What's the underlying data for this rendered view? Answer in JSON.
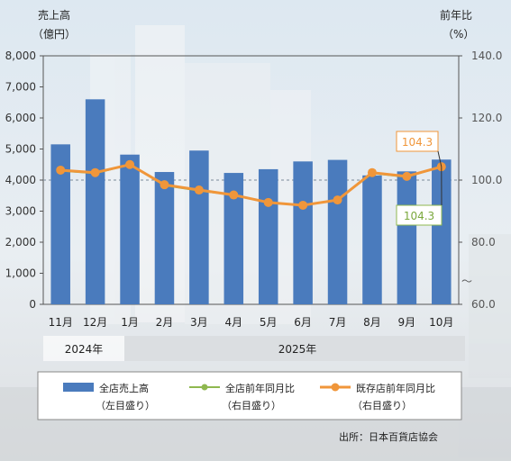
{
  "chart_data": {
    "type": "bar",
    "categories": [
      "11月",
      "12月",
      "1月",
      "2月",
      "3月",
      "4月",
      "5月",
      "6月",
      "7月",
      "8月",
      "9月",
      "10月"
    ],
    "year_groups": [
      {
        "label": "2024年",
        "categories": [
          "11月",
          "12月"
        ]
      },
      {
        "label": "2025年",
        "categories": [
          "1月",
          "2月",
          "3月",
          "4月",
          "5月",
          "6月",
          "7月",
          "8月",
          "9月",
          "10月"
        ]
      }
    ],
    "y_left": {
      "title_line1": "売上高",
      "title_line2": "（億円）",
      "ylim": [
        0,
        8000
      ],
      "ticks": [
        "0",
        "1,000",
        "2,000",
        "3,000",
        "4,000",
        "5,000",
        "6,000",
        "7,000",
        "8,000"
      ]
    },
    "y_right": {
      "title_line1": "前年比",
      "title_line2": "（%）",
      "ylim": [
        60,
        140
      ],
      "ticks": [
        "60.0",
        "80.0",
        "100.0",
        "120.0",
        "140.0"
      ],
      "break_mark": "〜"
    },
    "series": [
      {
        "name": "全店売上高",
        "sub": "（左目盛り）",
        "axis": "left",
        "kind": "bar",
        "color": "#4a7bbd",
        "values": [
          5150,
          6600,
          4820,
          4260,
          4950,
          4230,
          4350,
          4600,
          4650,
          4150,
          4280,
          4660
        ]
      },
      {
        "name": "全店前年同月比",
        "sub": "（右目盛り）",
        "axis": "right",
        "kind": "line",
        "color": "#8fb84f",
        "values": [
          103.0,
          102.2,
          105.0,
          98.3,
          96.6,
          95.2,
          92.8,
          91.9,
          93.6,
          102.2,
          101.0,
          104.3
        ]
      },
      {
        "name": "既存店前年同月比",
        "sub": "（右目盛り）",
        "axis": "right",
        "kind": "line",
        "color": "#f0963a",
        "values": [
          103.2,
          102.4,
          105.0,
          98.5,
          96.8,
          95.2,
          92.8,
          91.9,
          93.6,
          102.4,
          101.2,
          104.3
        ]
      }
    ],
    "annotations": [
      {
        "text": "104.3",
        "series": "既存店前年同月比",
        "color": "#f0963a"
      },
      {
        "text": "104.3",
        "series": "全店前年同月比",
        "color": "#7aa83c"
      }
    ],
    "reference_line": 100,
    "source": "出所：日本百貨店協会"
  }
}
